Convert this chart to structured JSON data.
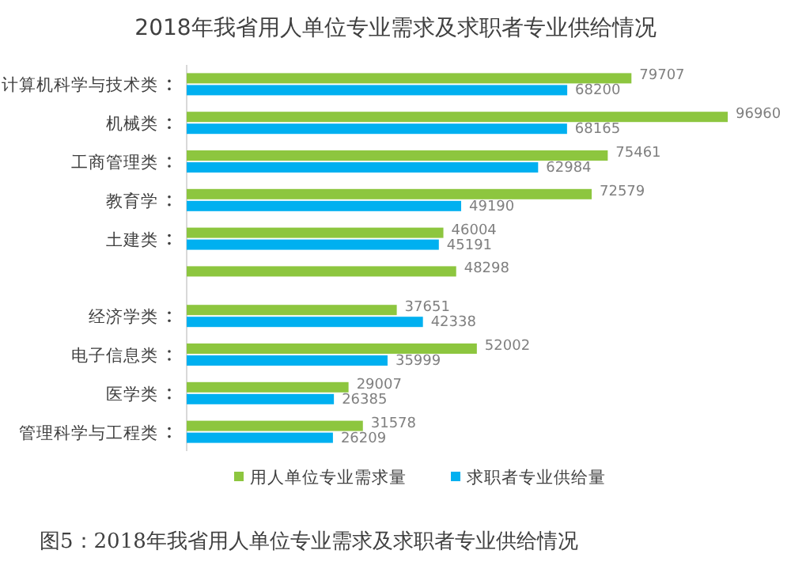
{
  "chart_data": {
    "type": "bar",
    "orientation": "horizontal",
    "title": "2018年我省用人单位专业需求及求职者专业供给情况",
    "categories": [
      "计算机科学与技术类",
      "机械类",
      "工商管理类",
      "教育学",
      "土建类",
      null,
      "经济学类",
      "电子信息类",
      "医学类",
      "管理科学与工程类"
    ],
    "series": [
      {
        "name": "用人单位专业需求量",
        "color": "#8dc63f",
        "values": [
          79707,
          96960,
          75461,
          72579,
          46004,
          48298,
          37651,
          52002,
          29007,
          31578
        ]
      },
      {
        "name": "求职者专业供给量",
        "color": "#00b0f0",
        "values": [
          68200,
          68165,
          62984,
          49190,
          45191,
          null,
          42338,
          35999,
          26385,
          26209
        ]
      }
    ],
    "data_labels": true,
    "legend": "bottom",
    "annotations": [
      "图5：2018年我省用人单位专业需求及求职者专业供给情况"
    ]
  }
}
